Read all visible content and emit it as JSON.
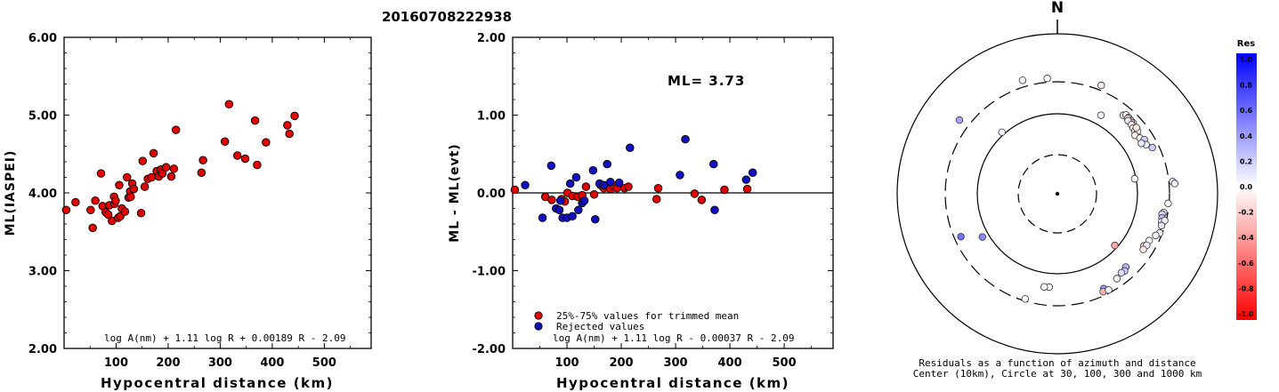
{
  "title": "20160708222938",
  "chart_data": [
    {
      "type": "scatter",
      "xlabel": "Hypocentral distance (km)",
      "ylabel": "ML(IASPEI)",
      "xlim": [
        0,
        590
      ],
      "ylim": [
        2.0,
        6.0
      ],
      "xticks": [
        "100",
        "200",
        "300",
        "400",
        "500"
      ],
      "yticks": [
        "2.00",
        "3.00",
        "4.00",
        "5.00",
        "6.00"
      ],
      "formula": "log A(nm) + 1.11 log R + 0.00189 R - 2.09",
      "series": [
        {
          "color": "#e00000",
          "points": [
            [
              4,
              3.78
            ],
            [
              22,
              3.88
            ],
            [
              51,
              3.78
            ],
            [
              55,
              3.55
            ],
            [
              60,
              3.9
            ],
            [
              71,
              4.25
            ],
            [
              74,
              3.83
            ],
            [
              80,
              3.75
            ],
            [
              85,
              3.72
            ],
            [
              87,
              3.84
            ],
            [
              92,
              3.64
            ],
            [
              96,
              3.95
            ],
            [
              97,
              3.86
            ],
            [
              99,
              3.9
            ],
            [
              104,
              3.68
            ],
            [
              106,
              4.1
            ],
            [
              108,
              3.7
            ],
            [
              111,
              3.8
            ],
            [
              117,
              3.76
            ],
            [
              121,
              4.2
            ],
            [
              124,
              3.94
            ],
            [
              127,
              4.02
            ],
            [
              128,
              3.95
            ],
            [
              131,
              4.12
            ],
            [
              134,
              4.05
            ],
            [
              148,
              3.74
            ],
            [
              151,
              4.41
            ],
            [
              155,
              4.08
            ],
            [
              161,
              4.18
            ],
            [
              168,
              4.2
            ],
            [
              172,
              4.51
            ],
            [
              178,
              4.28
            ],
            [
              182,
              4.21
            ],
            [
              186,
              4.3
            ],
            [
              189,
              4.25
            ],
            [
              196,
              4.33
            ],
            [
              206,
              4.21
            ],
            [
              211,
              4.31
            ],
            [
              215,
              4.81
            ],
            [
              264,
              4.26
            ],
            [
              267,
              4.42
            ],
            [
              309,
              4.66
            ],
            [
              317,
              5.14
            ],
            [
              333,
              4.48
            ],
            [
              348,
              4.44
            ],
            [
              367,
              4.93
            ],
            [
              371,
              4.36
            ],
            [
              388,
              4.65
            ],
            [
              429,
              4.87
            ],
            [
              433,
              4.76
            ],
            [
              443,
              4.99
            ]
          ]
        }
      ]
    },
    {
      "type": "scatter",
      "xlabel": "Hypocentral distance (km)",
      "ylabel": "ML - ML(evt)",
      "xlim": [
        0,
        590
      ],
      "ylim": [
        -2.0,
        2.0
      ],
      "xticks": [
        "100",
        "200",
        "300",
        "400",
        "500"
      ],
      "yticks": [
        "-2.00",
        "-1.00",
        "0.00",
        "1.00",
        "2.00"
      ],
      "annotation": "ML= 3.73",
      "formula": "log A(nm) + 1.11 log R - 0.00037 R - 2.09",
      "reference_line": 0,
      "legend": [
        {
          "label": "25%-75% values for trimmed mean",
          "color": "#e00000"
        },
        {
          "label": "Rejected values",
          "color": "#1010c0"
        }
      ],
      "series": [
        {
          "name": "25%-75% values for trimmed mean",
          "color": "#e00000",
          "points": [
            [
              4,
              0.04
            ],
            [
              60,
              -0.05
            ],
            [
              72,
              -0.09
            ],
            [
              90,
              -0.08
            ],
            [
              96,
              -0.11
            ],
            [
              101,
              0.0
            ],
            [
              110,
              -0.04
            ],
            [
              120,
              -0.05
            ],
            [
              128,
              -0.03
            ],
            [
              130,
              -0.11
            ],
            [
              135,
              0.08
            ],
            [
              150,
              -0.02
            ],
            [
              162,
              0.1
            ],
            [
              168,
              0.06
            ],
            [
              176,
              0.08
            ],
            [
              180,
              0.05
            ],
            [
              186,
              0.09
            ],
            [
              192,
              0.06
            ],
            [
              206,
              0.06
            ],
            [
              213,
              0.08
            ],
            [
              265,
              -0.08
            ],
            [
              268,
              0.06
            ],
            [
              335,
              -0.01
            ],
            [
              348,
              -0.09
            ],
            [
              390,
              0.04
            ],
            [
              432,
              0.05
            ]
          ]
        },
        {
          "name": "Rejected values",
          "color": "#1010c0",
          "points": [
            [
              23,
              0.1
            ],
            [
              55,
              -0.32
            ],
            [
              71,
              0.35
            ],
            [
              80,
              -0.2
            ],
            [
              86,
              -0.22
            ],
            [
              88,
              -0.1
            ],
            [
              92,
              -0.32
            ],
            [
              100,
              -0.32
            ],
            [
              106,
              0.12
            ],
            [
              110,
              -0.3
            ],
            [
              117,
              0.2
            ],
            [
              121,
              -0.22
            ],
            [
              128,
              -0.13
            ],
            [
              132,
              -0.1
            ],
            [
              148,
              0.29
            ],
            [
              152,
              -0.34
            ],
            [
              160,
              0.12
            ],
            [
              168,
              0.1
            ],
            [
              174,
              0.37
            ],
            [
              180,
              0.14
            ],
            [
              196,
              0.13
            ],
            [
              216,
              0.58
            ],
            [
              308,
              0.23
            ],
            [
              318,
              0.69
            ],
            [
              370,
              0.37
            ],
            [
              372,
              -0.22
            ],
            [
              430,
              0.17
            ],
            [
              442,
              0.26
            ]
          ]
        }
      ]
    },
    {
      "type": "scatter",
      "subtype": "polar",
      "north_label": "N",
      "caption_line1": "Residuals as a function of azimuth and distance",
      "caption_line2": "Center (10km), Circle at 30, 100, 300 and 1000 km",
      "colorbar": {
        "title": "Res",
        "ticks": [
          "1.0",
          "0.8",
          "0.6",
          "0.4",
          "0.2",
          "0.0",
          "-0.2",
          "-0.4",
          "-0.6",
          "-0.8",
          "-1.0"
        ],
        "max_color": "#0000ff",
        "min_color": "#ff0000"
      },
      "rings_km": [
        30,
        100,
        300,
        1000
      ],
      "stations": [
        {
          "az": 343,
          "dist_km": 355,
          "res": 0.05
        },
        {
          "az": 355,
          "dist_km": 330,
          "res": 0.0
        },
        {
          "az": 22,
          "dist_km": 340,
          "res": -0.08
        },
        {
          "az": 307,
          "dist_km": 390,
          "res": 0.35
        },
        {
          "az": 318,
          "dist_km": 110,
          "res": 0.05
        },
        {
          "az": 29,
          "dist_km": 140,
          "res": 0.05
        },
        {
          "az": 40,
          "dist_km": 216,
          "res": 0.05
        },
        {
          "az": 41,
          "dist_km": 232,
          "res": -0.05
        },
        {
          "az": 43,
          "dist_km": 230,
          "res": 0.0
        },
        {
          "az": 45,
          "dist_km": 226,
          "res": -0.1
        },
        {
          "az": 47,
          "dist_km": 224,
          "res": -0.05
        },
        {
          "az": 43,
          "dist_km": 220,
          "res": -0.15
        },
        {
          "az": 46,
          "dist_km": 218,
          "res": -0.12
        },
        {
          "az": 49,
          "dist_km": 212,
          "res": 0.0
        },
        {
          "az": 44,
          "dist_km": 210,
          "res": 0.1
        },
        {
          "az": 47,
          "dist_km": 208,
          "res": -0.08
        },
        {
          "az": 49,
          "dist_km": 200,
          "res": -0.05
        },
        {
          "az": 51,
          "dist_km": 196,
          "res": 0.05
        },
        {
          "az": 53,
          "dist_km": 194,
          "res": -0.03
        },
        {
          "az": 52,
          "dist_km": 210,
          "res": 0.0
        },
        {
          "az": 50,
          "dist_km": 220,
          "res": -0.1
        },
        {
          "az": 53,
          "dist_km": 180,
          "res": -0.04
        },
        {
          "az": 56,
          "dist_km": 195,
          "res": -0.02
        },
        {
          "az": 58,
          "dist_km": 215,
          "res": 0.18
        },
        {
          "az": 61,
          "dist_km": 208,
          "res": 0.06
        },
        {
          "az": 64,
          "dist_km": 240,
          "res": 0.2
        },
        {
          "az": 59,
          "dist_km": 185,
          "res": 0.08
        },
        {
          "az": 79,
          "dist_km": 96,
          "res": 0.02
        },
        {
          "az": 84,
          "dist_km": 330,
          "res": 0.0
        },
        {
          "az": 85,
          "dist_km": 345,
          "res": 0.05
        },
        {
          "az": 95,
          "dist_km": 290,
          "res": 0.02
        },
        {
          "az": 100,
          "dist_km": 260,
          "res": 0.05
        },
        {
          "az": 101,
          "dist_km": 248,
          "res": 0.15
        },
        {
          "az": 103,
          "dist_km": 255,
          "res": 0.25
        },
        {
          "az": 105,
          "dist_km": 260,
          "res": 0.08
        },
        {
          "az": 104,
          "dist_km": 285,
          "res": 0.05
        },
        {
          "az": 107,
          "dist_km": 268,
          "res": 0.1
        },
        {
          "az": 111,
          "dist_km": 275,
          "res": 0.02
        },
        {
          "az": 113,
          "dist_km": 250,
          "res": 0.04
        },
        {
          "az": 117,
          "dist_km": 220,
          "res": 0.0
        },
        {
          "az": 121,
          "dist_km": 205,
          "res": -0.05
        },
        {
          "az": 120,
          "dist_km": 220,
          "res": 0.05
        },
        {
          "az": 123,
          "dist_km": 215,
          "res": -0.1
        },
        {
          "az": 132,
          "dist_km": 92,
          "res": -0.35
        },
        {
          "az": 137,
          "dist_km": 200,
          "res": 0.3
        },
        {
          "az": 139,
          "dist_km": 215,
          "res": 0.2
        },
        {
          "az": 141,
          "dist_km": 210,
          "res": 0.15
        },
        {
          "az": 145,
          "dist_km": 225,
          "res": 0.05
        },
        {
          "az": 154,
          "dist_km": 240,
          "res": 0.4
        },
        {
          "az": 155,
          "dist_km": 262,
          "res": -0.3
        },
        {
          "az": 152,
          "dist_km": 270,
          "res": 0.05
        },
        {
          "az": 185,
          "dist_km": 160,
          "res": 0.0
        },
        {
          "az": 188,
          "dist_km": 162,
          "res": 0.02
        },
        {
          "az": 197,
          "dist_km": 280,
          "res": 0.0
        },
        {
          "az": 240,
          "dist_km": 125,
          "res": 0.45
        },
        {
          "az": 246,
          "dist_km": 240,
          "res": 0.55
        }
      ]
    }
  ]
}
